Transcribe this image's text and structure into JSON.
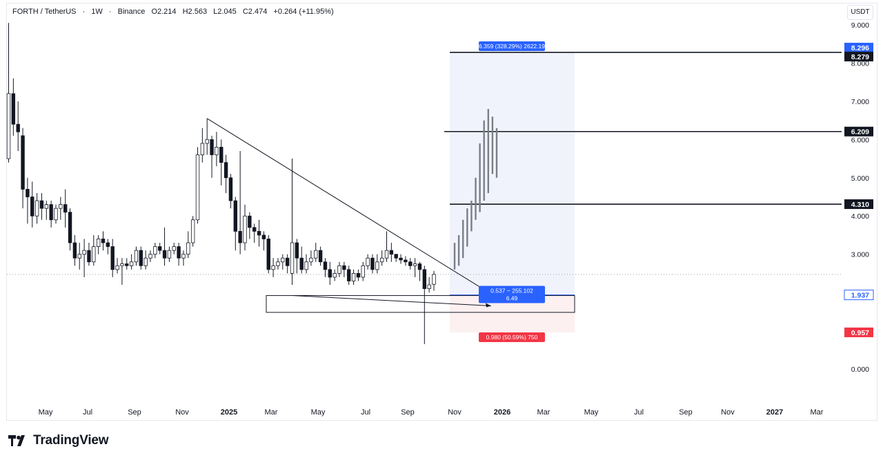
{
  "header": {
    "symbol": "FORTH / TetherUS",
    "interval": "1W",
    "exchange": "Binance",
    "open": "O2.214",
    "high": "H2.563",
    "low": "L2.045",
    "close": "C2.474",
    "change": "+0.264 (+11.95%)",
    "currency_button": "USDT"
  },
  "brand": {
    "name": "TradingView"
  },
  "colors": {
    "up": "#ffffff",
    "down": "#131722",
    "outline": "#131722",
    "target_zone": "#eef0fb",
    "stop_zone": "#fdf0f0",
    "blue_badge": "#2962ff",
    "red_badge": "#f23645",
    "dark_badge": "#131722"
  },
  "chart_data": {
    "type": "candlestick",
    "y_axis": {
      "ticks": [
        "0.000",
        "1.000",
        "2.000",
        "3.000",
        "4.000",
        "5.000",
        "6.000",
        "7.000",
        "8.000",
        "9.000"
      ],
      "range": [
        -0.6,
        9.1
      ]
    },
    "x_axis": {
      "ticks": [
        "May",
        "Jul",
        "Sep",
        "Nov",
        "2025",
        "Mar",
        "May",
        "Jul",
        "Sep",
        "Nov",
        "2026",
        "Mar",
        "May",
        "Jul",
        "Sep",
        "Nov",
        "2027",
        "Mar"
      ]
    },
    "price_labels": [
      {
        "value": 8.296,
        "text": "8.296",
        "style": "blue"
      },
      {
        "value": 8.279,
        "text": "8.279",
        "style": "dark"
      },
      {
        "value": 6.209,
        "text": "6.209",
        "style": "dark"
      },
      {
        "value": 4.31,
        "text": "4.310",
        "style": "dark"
      },
      {
        "value": 1.937,
        "text": "1.937",
        "style": "outline-blue"
      },
      {
        "value": 0.957,
        "text": "0.957",
        "style": "red"
      }
    ],
    "horizontal_levels": [
      8.279,
      6.209,
      4.31
    ],
    "position_tool": {
      "entry": 1.937,
      "target": 8.296,
      "stop": 0.957,
      "target_label": "6.359 (328.29%) 2622.19",
      "entry_label_line1": "0.537 − 255.102",
      "entry_label_line2": "6.49",
      "stop_label": "0.980 (50.59%) 750"
    },
    "trendline": {
      "from": 6.55,
      "to": 2.05
    },
    "demand_zone": {
      "top": 1.92,
      "bottom": 1.48
    },
    "candles": [
      [
        0,
        5.5,
        7.2,
        9.05,
        5.4
      ],
      [
        1,
        7.2,
        6.4,
        7.6,
        6.1
      ],
      [
        2,
        6.4,
        6.2,
        7.0,
        5.7
      ],
      [
        3,
        6.1,
        4.7,
        6.3,
        4.2
      ],
      [
        4,
        4.7,
        4.5,
        5.0,
        3.8
      ],
      [
        5,
        4.5,
        4.0,
        4.9,
        3.7
      ],
      [
        6,
        4.0,
        4.4,
        4.6,
        3.8
      ],
      [
        7,
        4.4,
        4.2,
        4.6,
        3.9
      ],
      [
        8,
        4.2,
        4.3,
        4.4,
        3.9
      ],
      [
        9,
        4.3,
        3.9,
        4.4,
        3.7
      ],
      [
        10,
        3.9,
        4.2,
        4.3,
        3.8
      ],
      [
        11,
        4.2,
        4.3,
        4.5,
        3.9
      ],
      [
        12,
        4.3,
        4.1,
        4.7,
        3.7
      ],
      [
        13,
        4.1,
        3.3,
        4.2,
        3.1
      ],
      [
        14,
        3.3,
        2.9,
        3.5,
        2.7
      ],
      [
        15,
        2.9,
        3.0,
        3.3,
        2.6
      ],
      [
        16,
        3.0,
        3.1,
        3.4,
        2.4
      ],
      [
        17,
        3.1,
        2.8,
        3.3,
        2.7
      ],
      [
        18,
        2.8,
        3.2,
        3.5,
        2.7
      ],
      [
        19,
        3.2,
        3.4,
        3.5,
        3.0
      ],
      [
        20,
        3.4,
        3.3,
        3.6,
        3.1
      ],
      [
        21,
        3.3,
        3.2,
        3.4,
        3.0
      ],
      [
        22,
        3.2,
        2.6,
        3.4,
        2.4
      ],
      [
        23,
        2.6,
        2.7,
        2.9,
        2.5
      ],
      [
        24,
        2.7,
        2.75,
        2.9,
        2.2
      ],
      [
        25,
        2.75,
        2.7,
        2.9,
        2.6
      ],
      [
        26,
        2.7,
        2.8,
        3.0,
        2.6
      ],
      [
        27,
        2.8,
        3.1,
        3.2,
        2.7
      ],
      [
        28,
        3.1,
        2.7,
        3.2,
        2.6
      ],
      [
        29,
        2.7,
        2.9,
        3.1,
        2.6
      ],
      [
        30,
        2.9,
        3.0,
        3.1,
        2.8
      ],
      [
        31,
        3.0,
        3.2,
        3.3,
        2.9
      ],
      [
        32,
        3.2,
        3.1,
        3.3,
        3.0
      ],
      [
        33,
        3.1,
        2.9,
        3.7,
        2.7
      ],
      [
        34,
        2.9,
        3.1,
        3.2,
        2.8
      ],
      [
        35,
        3.1,
        3.2,
        3.3,
        3.0
      ],
      [
        36,
        3.2,
        2.9,
        3.3,
        2.7
      ],
      [
        37,
        2.9,
        3.0,
        3.1,
        2.7
      ],
      [
        38,
        3.0,
        3.3,
        3.6,
        2.9
      ],
      [
        39,
        3.3,
        3.9,
        4.0,
        3.2
      ],
      [
        40,
        3.9,
        5.6,
        5.8,
        3.8
      ],
      [
        41,
        5.6,
        5.9,
        6.3,
        5.4
      ],
      [
        42,
        5.9,
        6.0,
        6.55,
        5.6
      ],
      [
        43,
        6.0,
        5.6,
        6.1,
        5.0
      ],
      [
        44,
        5.6,
        5.8,
        6.2,
        5.3
      ],
      [
        45,
        5.8,
        5.4,
        6.0,
        4.8
      ],
      [
        46,
        5.4,
        5.0,
        5.6,
        4.6
      ],
      [
        47,
        5.0,
        4.4,
        5.1,
        4.2
      ],
      [
        48,
        4.4,
        3.6,
        4.5,
        3.1
      ],
      [
        49,
        3.6,
        3.3,
        5.7,
        3.0
      ],
      [
        50,
        3.3,
        4.0,
        4.3,
        3.1
      ],
      [
        51,
        4.0,
        3.7,
        4.1,
        3.4
      ],
      [
        52,
        3.7,
        3.6,
        3.8,
        3.3
      ],
      [
        53,
        3.6,
        3.5,
        3.9,
        3.2
      ],
      [
        54,
        3.5,
        3.4,
        3.6,
        3.1
      ],
      [
        55,
        3.4,
        2.6,
        3.5,
        2.5
      ],
      [
        56,
        2.6,
        2.7,
        2.9,
        2.4
      ],
      [
        57,
        2.7,
        2.8,
        2.9,
        2.6
      ],
      [
        58,
        2.8,
        2.9,
        3.0,
        2.6
      ],
      [
        59,
        2.9,
        2.7,
        3.0,
        2.5
      ],
      [
        60,
        2.5,
        3.3,
        5.5,
        2.2
      ],
      [
        61,
        3.3,
        2.9,
        3.4,
        2.5
      ],
      [
        62,
        2.9,
        2.6,
        3.2,
        2.5
      ],
      [
        63,
        2.6,
        2.8,
        3.0,
        2.5
      ],
      [
        64,
        2.8,
        2.9,
        3.1,
        2.7
      ],
      [
        65,
        2.9,
        3.1,
        3.3,
        2.8
      ],
      [
        66,
        3.1,
        2.8,
        3.2,
        2.7
      ],
      [
        67,
        2.8,
        2.6,
        2.9,
        2.4
      ],
      [
        68,
        2.6,
        2.4,
        2.8,
        2.2
      ],
      [
        69,
        2.4,
        2.5,
        2.6,
        2.3
      ],
      [
        70,
        2.5,
        2.7,
        2.8,
        2.4
      ],
      [
        71,
        2.7,
        2.6,
        2.8,
        2.4
      ],
      [
        72,
        2.6,
        2.3,
        2.7,
        2.2
      ],
      [
        73,
        2.3,
        2.5,
        2.6,
        2.2
      ],
      [
        74,
        2.5,
        2.4,
        2.6,
        2.3
      ],
      [
        75,
        2.4,
        2.7,
        2.8,
        2.3
      ],
      [
        76,
        2.7,
        2.9,
        3.0,
        2.6
      ],
      [
        77,
        2.9,
        2.6,
        3.0,
        2.5
      ],
      [
        78,
        2.6,
        2.8,
        3.0,
        2.5
      ],
      [
        79,
        2.8,
        2.9,
        3.1,
        2.7
      ],
      [
        80,
        2.9,
        3.1,
        3.6,
        2.8
      ],
      [
        81,
        3.1,
        3.0,
        3.3,
        2.8
      ],
      [
        82,
        3.0,
        2.9,
        3.0,
        2.8
      ],
      [
        83,
        2.9,
        2.85,
        3.0,
        2.75
      ],
      [
        84,
        2.85,
        2.8,
        2.95,
        2.7
      ],
      [
        85,
        2.8,
        2.7,
        2.9,
        2.6
      ],
      [
        86,
        2.7,
        2.75,
        2.9,
        2.4
      ],
      [
        87,
        2.75,
        2.6,
        2.8,
        2.3
      ],
      [
        88,
        2.6,
        2.1,
        2.7,
        0.65
      ],
      [
        89,
        2.1,
        2.2,
        2.4,
        2.0
      ],
      [
        90,
        2.214,
        2.474,
        2.563,
        2.045
      ]
    ],
    "projected_bars": [
      [
        2.6,
        3.3
      ],
      [
        2.7,
        3.5
      ],
      [
        2.9,
        3.9
      ],
      [
        3.2,
        4.2
      ],
      [
        3.6,
        4.4
      ],
      [
        3.9,
        5.0
      ],
      [
        4.1,
        5.9
      ],
      [
        4.4,
        6.5
      ],
      [
        4.6,
        6.8
      ],
      [
        5.1,
        6.6
      ],
      [
        5.0,
        6.3
      ]
    ]
  }
}
